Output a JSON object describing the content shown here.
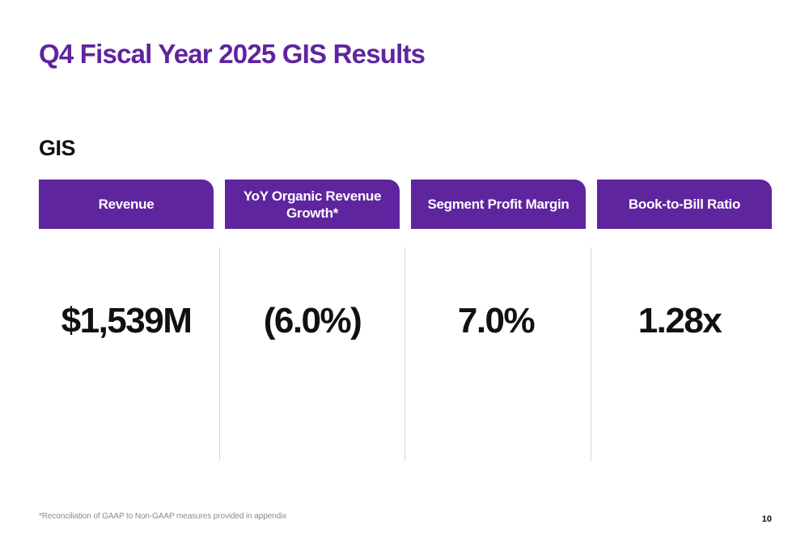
{
  "slide": {
    "title": "Q4 Fiscal Year 2025 GIS Results",
    "section_label": "GIS",
    "metrics": [
      {
        "header": "Revenue",
        "value": "$1,539M"
      },
      {
        "header": "YoY Organic Revenue Growth*",
        "value": "(6.0%)"
      },
      {
        "header": "Segment Profit Margin",
        "value": "7.0%"
      },
      {
        "header": "Book-to-Bill Ratio",
        "value": "1.28x"
      }
    ],
    "footnote": "*Reconciliation of GAAP to Non-GAAP measures provided in appendix",
    "page_number": "10"
  },
  "colors": {
    "brand_purple": "#5f259f",
    "text_dark": "#111111",
    "divider": "#d6d6d6",
    "footnote": "#8a8a8a"
  }
}
